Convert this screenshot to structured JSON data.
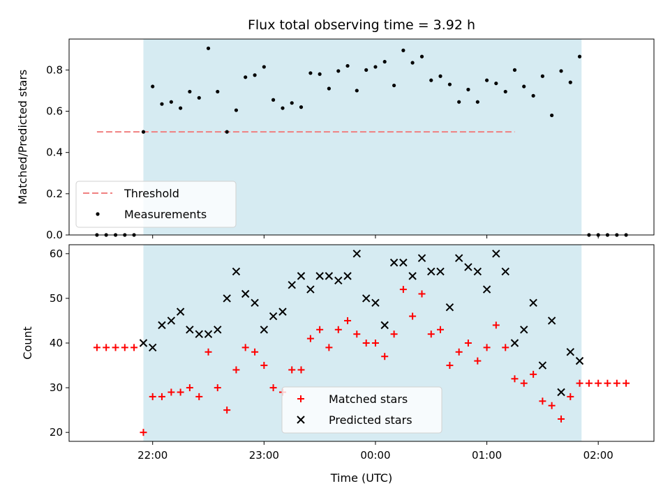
{
  "chart_data": [
    {
      "type": "scatter",
      "title": "Flux total observing time = 3.92 h",
      "ylabel": "Matched/Predicted stars",
      "xlabel": "",
      "xlim": [
        -1.75,
        3.5
      ],
      "ylim": [
        0.0,
        0.95
      ],
      "yticks": [
        0.0,
        0.2,
        0.4,
        0.6,
        0.8
      ],
      "ytick_labels": [
        "0.0",
        "0.2",
        "0.4",
        "0.6",
        "0.8"
      ],
      "xticks": [
        -1.0,
        0.0,
        1.0,
        2.0,
        3.0
      ],
      "xtick_labels": [
        "",
        "",
        "",
        "",
        ""
      ],
      "observing_span": [
        -1.083,
        2.85
      ],
      "threshold": {
        "x": [
          -1.5,
          2.25
        ],
        "y": 0.5,
        "label": "Threshold"
      },
      "legend": {
        "placement": "lower-left",
        "entries": [
          "Threshold",
          "Measurements"
        ]
      },
      "series": [
        {
          "name": "Measurements",
          "x": [
            -1.5,
            -1.417,
            -1.333,
            -1.25,
            -1.167,
            -1.083,
            -1.0,
            -0.917,
            -0.833,
            -0.75,
            -0.667,
            -0.583,
            -0.5,
            -0.417,
            -0.333,
            -0.25,
            -0.167,
            -0.083,
            0.0,
            0.083,
            0.167,
            0.25,
            0.333,
            0.417,
            0.5,
            0.583,
            0.667,
            0.75,
            0.833,
            0.917,
            1.0,
            1.083,
            1.167,
            1.25,
            1.333,
            1.417,
            1.5,
            1.583,
            1.667,
            1.75,
            1.833,
            1.917,
            2.0,
            2.083,
            2.167,
            2.25,
            2.333,
            2.417,
            2.5,
            2.583,
            2.667,
            2.75,
            2.833,
            2.917,
            3.0,
            3.083,
            3.167,
            3.25
          ],
          "y": [
            0.0,
            0.0,
            0.0,
            0.0,
            0.0,
            0.5,
            0.72,
            0.635,
            0.645,
            0.615,
            0.695,
            0.665,
            0.905,
            0.695,
            0.5,
            0.605,
            0.765,
            0.775,
            0.815,
            0.655,
            0.615,
            0.64,
            0.62,
            0.785,
            0.78,
            0.71,
            0.795,
            0.82,
            0.7,
            0.8,
            0.815,
            0.84,
            0.725,
            0.895,
            0.835,
            0.865,
            0.75,
            0.77,
            0.73,
            0.645,
            0.705,
            0.645,
            0.75,
            0.735,
            0.695,
            0.8,
            0.72,
            0.675,
            0.77,
            0.58,
            0.795,
            0.74,
            0.865,
            0.0,
            0.0,
            0.0,
            0.0,
            0.0
          ]
        }
      ]
    },
    {
      "type": "scatter",
      "title": "",
      "ylabel": "Count",
      "xlabel": "Time (UTC)",
      "xlim": [
        -1.75,
        3.5
      ],
      "ylim": [
        18.0,
        62.0
      ],
      "yticks": [
        20,
        30,
        40,
        50,
        60
      ],
      "ytick_labels": [
        "20",
        "30",
        "40",
        "50",
        "60"
      ],
      "xticks": [
        -1.0,
        0.0,
        1.0,
        2.0,
        3.0
      ],
      "xtick_labels": [
        "22:00",
        "23:00",
        "00:00",
        "01:00",
        "02:00"
      ],
      "observing_span": [
        -1.083,
        2.85
      ],
      "legend": {
        "placement": "lower-center",
        "entries": [
          "Matched stars",
          "Predicted stars"
        ]
      },
      "series": [
        {
          "name": "Matched stars",
          "x": [
            -1.5,
            -1.417,
            -1.333,
            -1.25,
            -1.167,
            -1.083,
            -1.0,
            -0.917,
            -0.833,
            -0.75,
            -0.667,
            -0.583,
            -0.5,
            -0.417,
            -0.333,
            -0.25,
            -0.167,
            -0.083,
            0.0,
            0.083,
            0.167,
            0.25,
            0.333,
            0.417,
            0.5,
            0.583,
            0.667,
            0.75,
            0.833,
            0.917,
            1.0,
            1.083,
            1.167,
            1.25,
            1.333,
            1.417,
            1.5,
            1.583,
            1.667,
            1.75,
            1.833,
            1.917,
            2.0,
            2.083,
            2.167,
            2.25,
            2.333,
            2.417,
            2.5,
            2.583,
            2.667,
            2.75,
            2.833,
            2.917,
            3.0,
            3.083,
            3.167,
            3.25
          ],
          "y": [
            39,
            39,
            39,
            39,
            39,
            20,
            28,
            28,
            29,
            29,
            30,
            28,
            38,
            30,
            25,
            34,
            39,
            38,
            35,
            30,
            29,
            34,
            34,
            41,
            43,
            39,
            43,
            45,
            42,
            40,
            40,
            37,
            42,
            52,
            46,
            51,
            42,
            43,
            35,
            38,
            40,
            36,
            39,
            44,
            39,
            32,
            31,
            33,
            27,
            26,
            23,
            28,
            31,
            31,
            31,
            31,
            31,
            31
          ]
        },
        {
          "name": "Predicted stars",
          "x": [
            -1.083,
            -1.0,
            -0.917,
            -0.833,
            -0.75,
            -0.667,
            -0.583,
            -0.5,
            -0.417,
            -0.333,
            -0.25,
            -0.167,
            -0.083,
            0.0,
            0.083,
            0.167,
            0.25,
            0.333,
            0.417,
            0.5,
            0.583,
            0.667,
            0.75,
            0.833,
            0.917,
            1.0,
            1.083,
            1.167,
            1.25,
            1.333,
            1.417,
            1.5,
            1.583,
            1.667,
            1.75,
            1.833,
            1.917,
            2.0,
            2.083,
            2.167,
            2.25,
            2.333,
            2.417,
            2.5,
            2.583,
            2.667,
            2.75,
            2.833
          ],
          "y": [
            40,
            39,
            44,
            45,
            47,
            43,
            42,
            42,
            43,
            50,
            56,
            51,
            49,
            43,
            46,
            47,
            53,
            55,
            52,
            55,
            55,
            54,
            55,
            60,
            50,
            49,
            44,
            58,
            58,
            55,
            59,
            56,
            56,
            48,
            59,
            57,
            56,
            52,
            60,
            56,
            40,
            43,
            49,
            35,
            45,
            29,
            38,
            36
          ]
        }
      ]
    }
  ]
}
